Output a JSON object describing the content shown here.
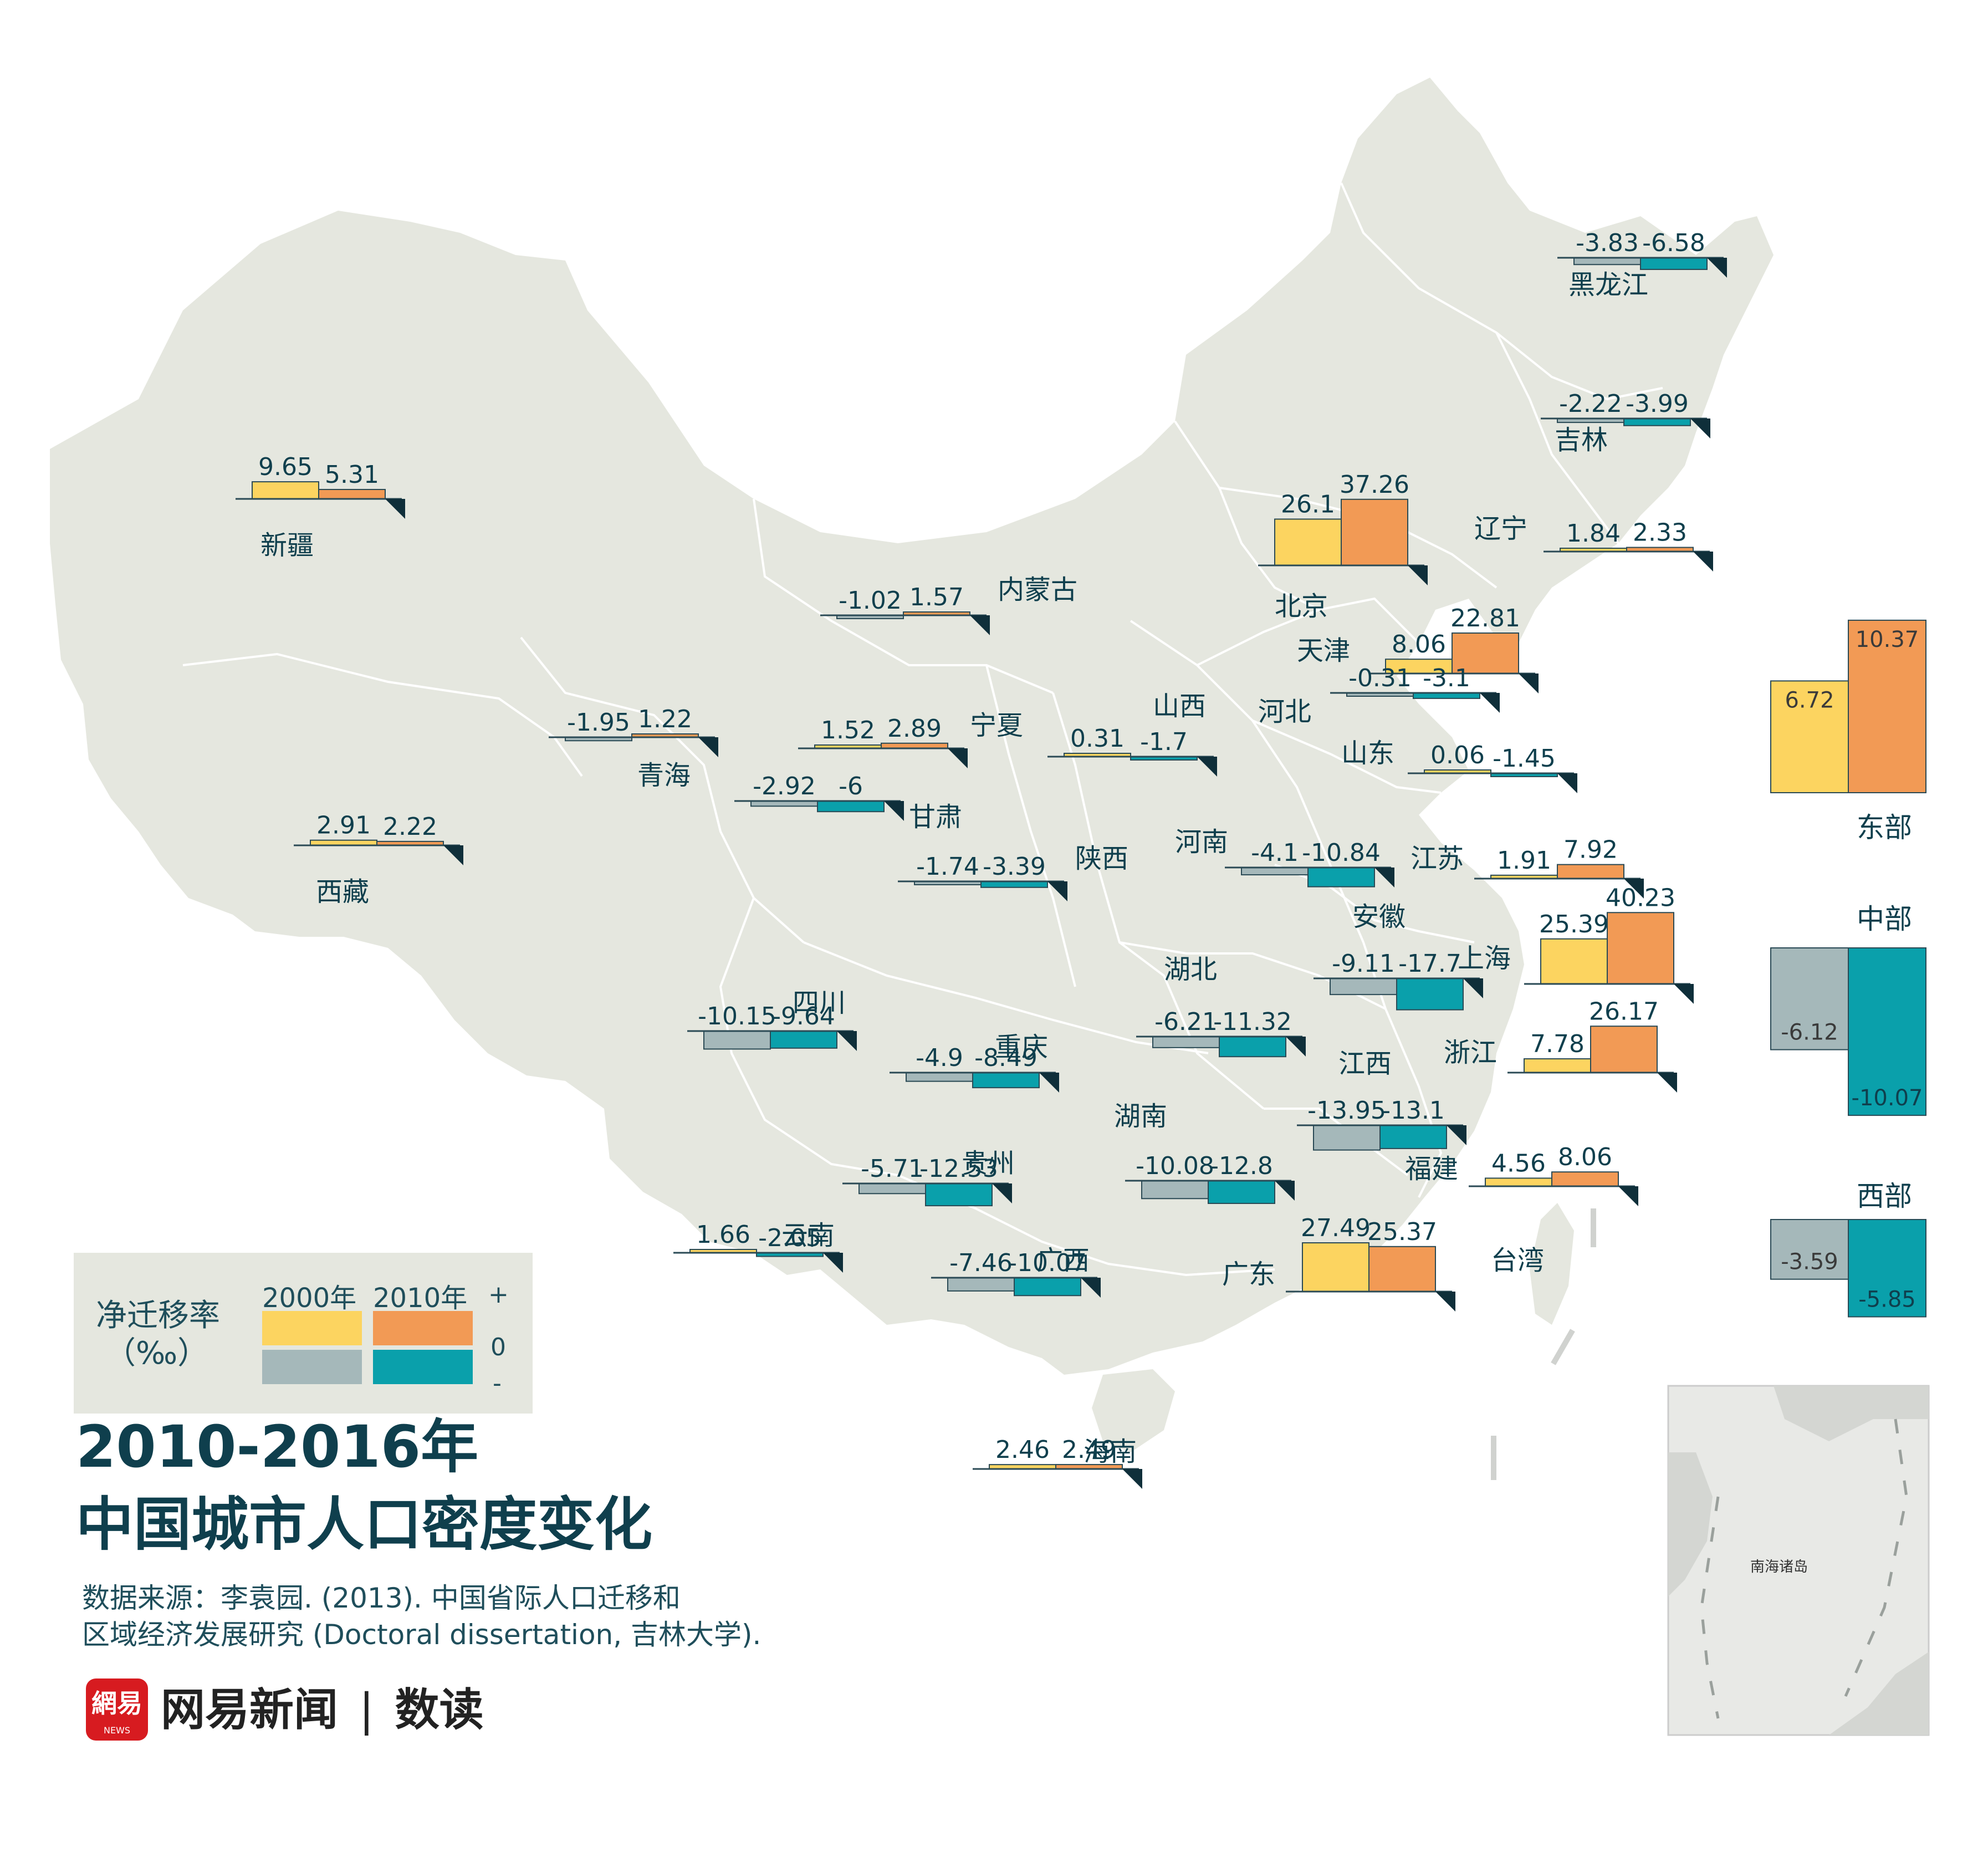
{
  "title_line1": "2010-2016年",
  "title_line2": "中国城市人口密度变化",
  "source_line1": "数据来源：李袁园. (2013). 中国省际人口迁移和",
  "source_line2": "区域经济发展研究 (Doctoral dissertation, 吉林大学).",
  "brand": {
    "logo_text": "網易",
    "logo_sub": "NEWS",
    "name": "网易新闻",
    "separator": "|",
    "product": "数读"
  },
  "legend": {
    "label_line1": "净迁移率",
    "label_line2": "（‰）",
    "year_2000": "2000年",
    "year_2010": "2010年",
    "sign_plus": "+",
    "sign_zero": "0",
    "sign_minus": "-"
  },
  "inset_label": "南海诸岛",
  "taiwan_label": "台湾",
  "colors": {
    "land": "#e5e7df",
    "border": "#ffffff",
    "pos_2000": "#fcd460",
    "pos_2010": "#f29a55",
    "neg_2000": "#a5b8ba",
    "neg_2010": "#0aa0ab",
    "text": "#0f3f4d"
  },
  "chart_data": {
    "type": "bar",
    "series": [
      {
        "name": "2000年"
      },
      {
        "name": "2010年"
      }
    ],
    "provinces": [
      {
        "name": "新疆",
        "v2000": 9.65,
        "v2010": 5.31
      },
      {
        "name": "西藏",
        "v2000": 2.91,
        "v2010": 2.22
      },
      {
        "name": "青海",
        "v2000": -1.95,
        "v2010": 1.22
      },
      {
        "name": "内蒙古",
        "v2000": -1.02,
        "v2010": 1.57
      },
      {
        "name": "宁夏",
        "v2000": 1.52,
        "v2010": 2.89
      },
      {
        "name": "甘肃",
        "v2000": -2.92,
        "v2010": -6
      },
      {
        "name": "陕西",
        "v2000": -1.74,
        "v2010": -3.39
      },
      {
        "name": "山西",
        "v2000": 0.31,
        "v2010": -1.7
      },
      {
        "name": "黑龙江",
        "v2000": -3.83,
        "v2010": -6.58
      },
      {
        "name": "吉林",
        "v2000": -2.22,
        "v2010": -3.99
      },
      {
        "name": "辽宁",
        "v2000": 1.84,
        "v2010": 2.33
      },
      {
        "name": "北京",
        "v2000": 26.1,
        "v2010": 37.26
      },
      {
        "name": "天津",
        "v2000": 8.06,
        "v2010": 22.81
      },
      {
        "name": "河北",
        "v2000": -0.31,
        "v2010": -3.1
      },
      {
        "name": "山东",
        "v2000": 0.06,
        "v2010": -1.45
      },
      {
        "name": "河南",
        "v2000": -4.1,
        "v2010": -10.84
      },
      {
        "name": "江苏",
        "v2000": 1.91,
        "v2010": 7.92
      },
      {
        "name": "安徽",
        "v2000": -9.11,
        "v2010": -17.7
      },
      {
        "name": "上海",
        "v2000": 25.39,
        "v2010": 40.23
      },
      {
        "name": "湖北",
        "v2000": -6.21,
        "v2010": -11.32
      },
      {
        "name": "四川",
        "v2000": -10.15,
        "v2010": -9.64
      },
      {
        "name": "重庆",
        "v2000": -4.9,
        "v2010": -8.49
      },
      {
        "name": "浙江",
        "v2000": 7.78,
        "v2010": 26.17
      },
      {
        "name": "江西",
        "v2000": -13.95,
        "v2010": -13.1
      },
      {
        "name": "湖南",
        "v2000": -10.08,
        "v2010": -12.8
      },
      {
        "name": "贵州",
        "v2000": -5.71,
        "v2010": -12.53
      },
      {
        "name": "福建",
        "v2000": 4.56,
        "v2010": 8.06
      },
      {
        "name": "云南",
        "v2000": 1.66,
        "v2010": -2.05
      },
      {
        "name": "广西",
        "v2000": -7.46,
        "v2010": -10.07
      },
      {
        "name": "广东",
        "v2000": 27.49,
        "v2010": 25.37
      },
      {
        "name": "海南",
        "v2000": 2.46,
        "v2010": 2.49
      }
    ],
    "regions": [
      {
        "name": "东部",
        "v2000": 6.72,
        "v2010": 10.37
      },
      {
        "name": "中部",
        "v2000": -6.12,
        "v2010": -10.07
      },
      {
        "name": "西部",
        "v2000": -3.59,
        "v2010": -5.85
      }
    ]
  }
}
